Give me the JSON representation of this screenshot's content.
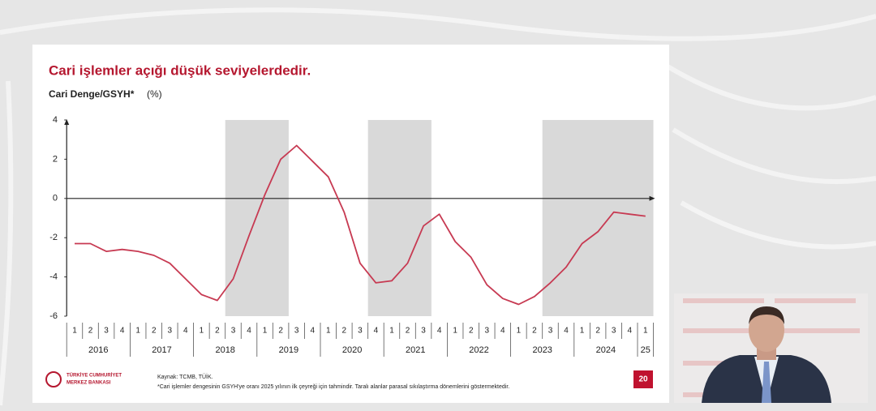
{
  "chart_data": {
    "type": "line",
    "title": "Cari işlemler açığı düşük seviyelerdedir.",
    "subtitle": "Cari Denge/GSYH*",
    "unit": "(%)",
    "categories": [
      "1",
      "2",
      "3",
      "4",
      "1",
      "2",
      "3",
      "4",
      "1",
      "2",
      "3",
      "4",
      "1",
      "2",
      "3",
      "4",
      "1",
      "2",
      "3",
      "4",
      "1",
      "2",
      "3",
      "4",
      "1",
      "2",
      "3",
      "4",
      "1",
      "2",
      "3",
      "4",
      "1",
      "2",
      "3",
      "4",
      "1"
    ],
    "year_labels": [
      "2016",
      "2017",
      "2018",
      "2019",
      "2020",
      "2021",
      "2022",
      "2023",
      "2024",
      "25"
    ],
    "values": [
      -2.3,
      -2.3,
      -2.7,
      -2.6,
      -2.7,
      -2.9,
      -3.3,
      -4.1,
      -4.9,
      -5.2,
      -4.1,
      -1.9,
      0.2,
      2.0,
      2.7,
      1.9,
      1.1,
      -0.7,
      -3.3,
      -4.3,
      -4.2,
      -3.3,
      -1.4,
      -0.8,
      -2.2,
      -3.0,
      -4.4,
      -5.1,
      -5.4,
      -5.0,
      -4.3,
      -3.5,
      -2.3,
      -1.7,
      -0.7,
      -0.8,
      -0.9
    ],
    "color": "#c73a52",
    "shaded_periods": [
      [
        10,
        13
      ],
      [
        19,
        22
      ],
      [
        30,
        36
      ]
    ],
    "shade_color": "#d9d9d9",
    "ylim": [
      -6,
      4
    ],
    "yticks": [
      4,
      2,
      0,
      -2,
      -4,
      -6
    ]
  },
  "footer": {
    "logo_line1": "TÜRKİYE CUMHURİYET",
    "logo_line2": "MERKEZ BANKASI",
    "source": "Kaynak: TCMB, TÜİK.",
    "note": "*Cari işlemler dengesinin GSYH'ye oranı 2025 yılının ilk çeyreği için tahmindir. Taralı alanlar parasal sıkılaştırma dönemlerini göstermektedir.",
    "page": "20"
  }
}
